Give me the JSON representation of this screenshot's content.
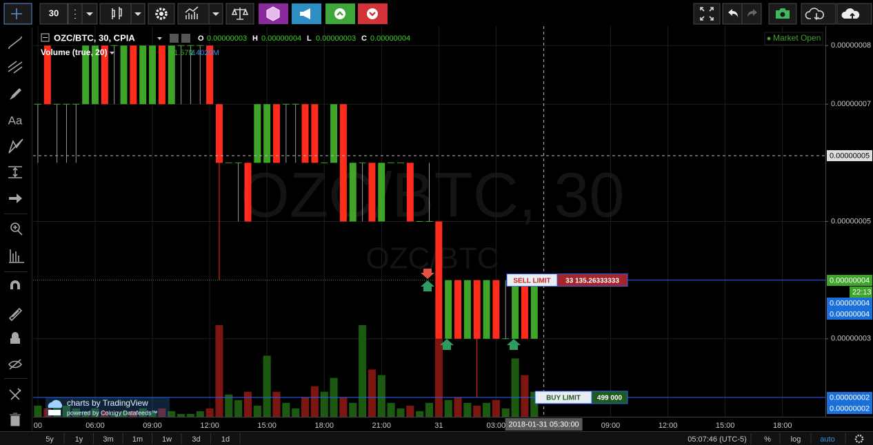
{
  "toolbar": {
    "interval": "30"
  },
  "drawing_tools": {
    "text": "Aa"
  },
  "chart_data": {
    "type": "candlestick",
    "title": "OZC/BTC, 30, CPIA",
    "ohlc_legend": [
      {
        "name": "O",
        "value": "0.00000003"
      },
      {
        "name": "H",
        "value": "0.00000004"
      },
      {
        "name": "L",
        "value": "0.00000003"
      },
      {
        "name": "C",
        "value": "0.00000004"
      }
    ],
    "status": "Market Open",
    "watermark": "OZC/BTC, 30",
    "watermark_sub": "OZC/BTC",
    "volume_legend": {
      "title": "Volume (true, 20)",
      "values": [
        "1.57M",
        "1.4020M"
      ]
    },
    "categories": [
      "2018-01-30 03:00",
      "2018-01-30 03:30",
      "2018-01-30 04:00",
      "2018-01-30 04:30",
      "2018-01-30 05:00",
      "2018-01-30 05:30",
      "2018-01-30 06:00",
      "2018-01-30 06:30",
      "2018-01-30 07:00",
      "2018-01-30 07:30",
      "2018-01-30 08:00",
      "2018-01-30 08:30",
      "2018-01-30 09:00",
      "2018-01-30 09:30",
      "2018-01-30 10:00",
      "2018-01-30 10:30",
      "2018-01-30 11:00",
      "2018-01-30 11:30",
      "2018-01-30 12:00",
      "2018-01-30 12:30",
      "2018-01-30 13:00",
      "2018-01-30 13:30",
      "2018-01-30 14:00",
      "2018-01-30 14:30",
      "2018-01-30 15:00",
      "2018-01-30 15:30",
      "2018-01-30 16:00",
      "2018-01-30 16:30",
      "2018-01-30 17:00",
      "2018-01-30 17:30",
      "2018-01-30 18:00",
      "2018-01-30 18:30",
      "2018-01-30 19:00",
      "2018-01-30 19:30",
      "2018-01-30 20:00",
      "2018-01-30 20:30",
      "2018-01-30 21:00",
      "2018-01-30 21:30",
      "2018-01-30 22:00",
      "2018-01-30 22:30",
      "2018-01-30 23:00",
      "2018-01-30 23:30",
      "2018-01-31 00:00",
      "2018-01-31 00:30",
      "2018-01-31 01:00",
      "2018-01-31 01:30",
      "2018-01-31 02:00",
      "2018-01-31 02:30",
      "2018-01-31 03:00",
      "2018-01-31 03:30",
      "2018-01-31 04:00",
      "2018-01-31 04:30",
      "2018-01-31 05:00"
    ],
    "open": [
      7e-08,
      8e-08,
      7e-08,
      7e-08,
      7e-08,
      7e-08,
      7e-08,
      8e-08,
      8e-08,
      7e-08,
      8e-08,
      7e-08,
      7e-08,
      8e-08,
      7e-08,
      8e-08,
      8e-08,
      8e-08,
      8e-08,
      7e-08,
      6e-08,
      6e-08,
      6e-08,
      6e-08,
      6e-08,
      7e-08,
      7e-08,
      7e-08,
      7e-08,
      7e-08,
      6e-08,
      6e-08,
      7e-08,
      5e-08,
      6e-08,
      6e-08,
      5e-08,
      6e-08,
      6e-08,
      6e-08,
      5e-08,
      5e-08,
      5e-08,
      3e-08,
      4e-08,
      3e-08,
      4e-08,
      3e-08,
      4e-08,
      3e-08,
      3e-08,
      4e-08,
      3e-08
    ],
    "high": [
      7e-08,
      8e-08,
      7e-08,
      7e-08,
      7e-08,
      8e-08,
      8e-08,
      8e-08,
      8e-08,
      8e-08,
      8e-08,
      8e-08,
      8e-08,
      8e-08,
      8e-08,
      8e-08,
      8e-08,
      8e-08,
      8e-08,
      7e-08,
      6e-08,
      6e-08,
      6e-08,
      7e-08,
      7e-08,
      7e-08,
      7e-08,
      7e-08,
      7e-08,
      7e-08,
      6e-08,
      7e-08,
      7e-08,
      6e-08,
      6e-08,
      6e-08,
      6e-08,
      6e-08,
      6e-08,
      6e-08,
      5e-08,
      6e-08,
      5e-08,
      4e-08,
      4e-08,
      4e-08,
      4e-08,
      4e-08,
      4e-08,
      4e-08,
      4e-08,
      4e-08,
      4e-08
    ],
    "low": [
      6e-08,
      7e-08,
      6e-08,
      6e-08,
      6e-08,
      7e-08,
      7e-08,
      7e-08,
      7e-08,
      7e-08,
      7e-08,
      7e-08,
      7e-08,
      7e-08,
      7e-08,
      7e-08,
      7e-08,
      7e-08,
      7e-08,
      4e-08,
      6e-08,
      5e-08,
      5e-08,
      6e-08,
      6e-08,
      6e-08,
      6e-08,
      6e-08,
      6e-08,
      6e-08,
      6e-08,
      6e-08,
      5e-08,
      5e-08,
      5e-08,
      5e-08,
      5e-08,
      6e-08,
      6e-08,
      5e-08,
      5e-08,
      5e-08,
      3e-08,
      3e-08,
      3e-08,
      3e-08,
      2e-08,
      3e-08,
      3e-08,
      3e-08,
      3e-08,
      3e-08,
      3e-08
    ],
    "close": [
      7e-08,
      7e-08,
      7e-08,
      7e-08,
      7e-08,
      8e-08,
      8e-08,
      7e-08,
      8e-08,
      8e-08,
      7e-08,
      8e-08,
      8e-08,
      7e-08,
      8e-08,
      8e-08,
      8e-08,
      8e-08,
      7e-08,
      6e-08,
      6e-08,
      6e-08,
      5e-08,
      7e-08,
      7e-08,
      6e-08,
      7e-08,
      7e-08,
      6e-08,
      6e-08,
      6e-08,
      7e-08,
      5e-08,
      6e-08,
      6e-08,
      5e-08,
      6e-08,
      6e-08,
      6e-08,
      5e-08,
      5e-08,
      5e-08,
      3e-08,
      4e-08,
      3e-08,
      4e-08,
      3e-08,
      4e-08,
      3e-08,
      3e-08,
      4e-08,
      3e-08,
      4e-08
    ],
    "volume": [
      0.4,
      0.3,
      0.4,
      0.4,
      0.3,
      0.2,
      0.3,
      0.2,
      0.1,
      0.2,
      0.2,
      0.3,
      0.2,
      0.3,
      0.2,
      0.1,
      0.1,
      0.2,
      0.3,
      3.3,
      0.8,
      0.6,
      0.9,
      0.4,
      2.2,
      0.9,
      0.5,
      0.3,
      0.7,
      1.1,
      0.9,
      1.4,
      0.7,
      0.5,
      3.3,
      1.7,
      1.5,
      0.5,
      0.3,
      0.4,
      0.2,
      0.5,
      2.8,
      0.6,
      0.7,
      0.5,
      0.4,
      0.5,
      0.6,
      0.3,
      2.1,
      1.5,
      0.9
    ],
    "up_color": "#3fa52a",
    "down_color": "#ff2b1c",
    "volume_up_color": "#1c5a12",
    "volume_down_color": "#7c1611",
    "xlim": [
      "2018-01-30 02:45",
      "2018-01-31 20:15"
    ],
    "xticks": [
      {
        "value": "2018-01-30 03:00",
        "label": "00"
      },
      {
        "value": "2018-01-30 06:00",
        "label": "06:00"
      },
      {
        "value": "2018-01-30 09:00",
        "label": "09:00"
      },
      {
        "value": "2018-01-30 12:00",
        "label": "12:00"
      },
      {
        "value": "2018-01-30 15:00",
        "label": "15:00"
      },
      {
        "value": "2018-01-30 18:00",
        "label": "18:00"
      },
      {
        "value": "2018-01-30 21:00",
        "label": "21:00"
      },
      {
        "value": "2018-01-31 00:00",
        "label": "31"
      },
      {
        "value": "2018-01-31 03:00",
        "label": "03:00"
      },
      {
        "value": "2018-01-31 09:00",
        "label": "09:00"
      },
      {
        "value": "2018-01-31 12:00",
        "label": "12:00"
      },
      {
        "value": "2018-01-31 15:00",
        "label": "15:00"
      },
      {
        "value": "2018-01-31 18:00",
        "label": "18:00"
      }
    ],
    "ylim": [
      1.67e-08,
      8.33e-08
    ],
    "yticks": [
      {
        "value": 8e-08,
        "label": "0.00000008"
      },
      {
        "value": 7e-08,
        "label": "0.00000007"
      },
      {
        "value": 5e-08,
        "label": "0.00000005"
      },
      {
        "value": 3e-08,
        "label": "0.00000003"
      }
    ],
    "grid": true,
    "orders": [
      {
        "side": "SELL LIMIT",
        "quantity": "33 135.26333333",
        "price": 4e-08,
        "color": "#a3262a"
      },
      {
        "side": "BUY LIMIT",
        "quantity": "499 000",
        "price": 2e-08,
        "color": "#1f5a1f"
      }
    ],
    "price_badges": [
      "0.00000004",
      "22:13",
      "0.00000004",
      "0.00000004",
      "0.00000002",
      "0.00000002"
    ],
    "crosshair": {
      "time": "2018-01-31 05:30:00",
      "price": "0.00000005"
    }
  },
  "bottom_bar": {
    "ranges": [
      "5y",
      "1y",
      "3m",
      "1m",
      "1w",
      "3d",
      "1d"
    ],
    "clock": "05:07:46 (UTC-5)",
    "percent": "%",
    "log": "log",
    "auto": "auto"
  },
  "branding": {
    "title": "charts by TradingView",
    "subtitle": "powered by Coinigy Datafeeds™"
  }
}
